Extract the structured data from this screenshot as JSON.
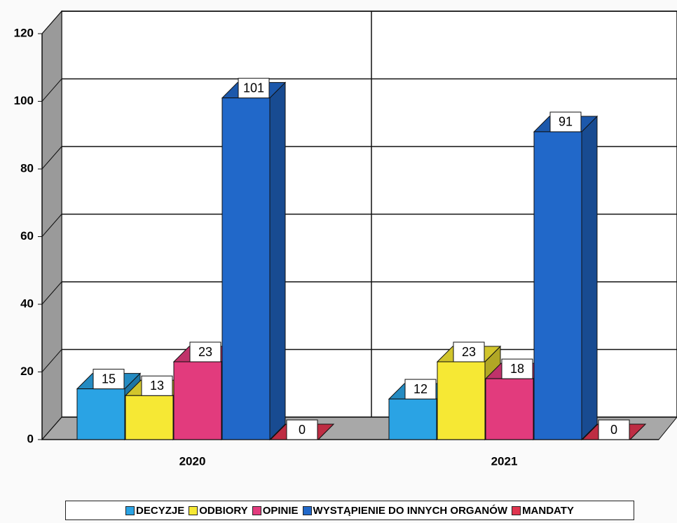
{
  "chart_data": {
    "type": "bar3d",
    "categories": [
      "2020",
      "2021"
    ],
    "series": [
      {
        "name": "DECYZJE",
        "color": "#2aa3e4",
        "values": [
          15,
          12
        ]
      },
      {
        "name": "ODBIORY",
        "color": "#f6e834",
        "values": [
          13,
          23
        ]
      },
      {
        "name": "OPINIE",
        "color": "#e23b7d",
        "values": [
          23,
          18
        ]
      },
      {
        "name": "WYSTĄPIENIE DO INNYCH ORGANÓW",
        "color": "#2168c9",
        "values": [
          101,
          91
        ]
      },
      {
        "name": "MANDATY",
        "color": "#e0354f",
        "values": [
          0,
          0
        ]
      }
    ],
    "ylim": [
      0,
      120
    ],
    "yticks": [
      0,
      20,
      40,
      60,
      80,
      100,
      120
    ],
    "grid": true,
    "legend": "bottom"
  }
}
